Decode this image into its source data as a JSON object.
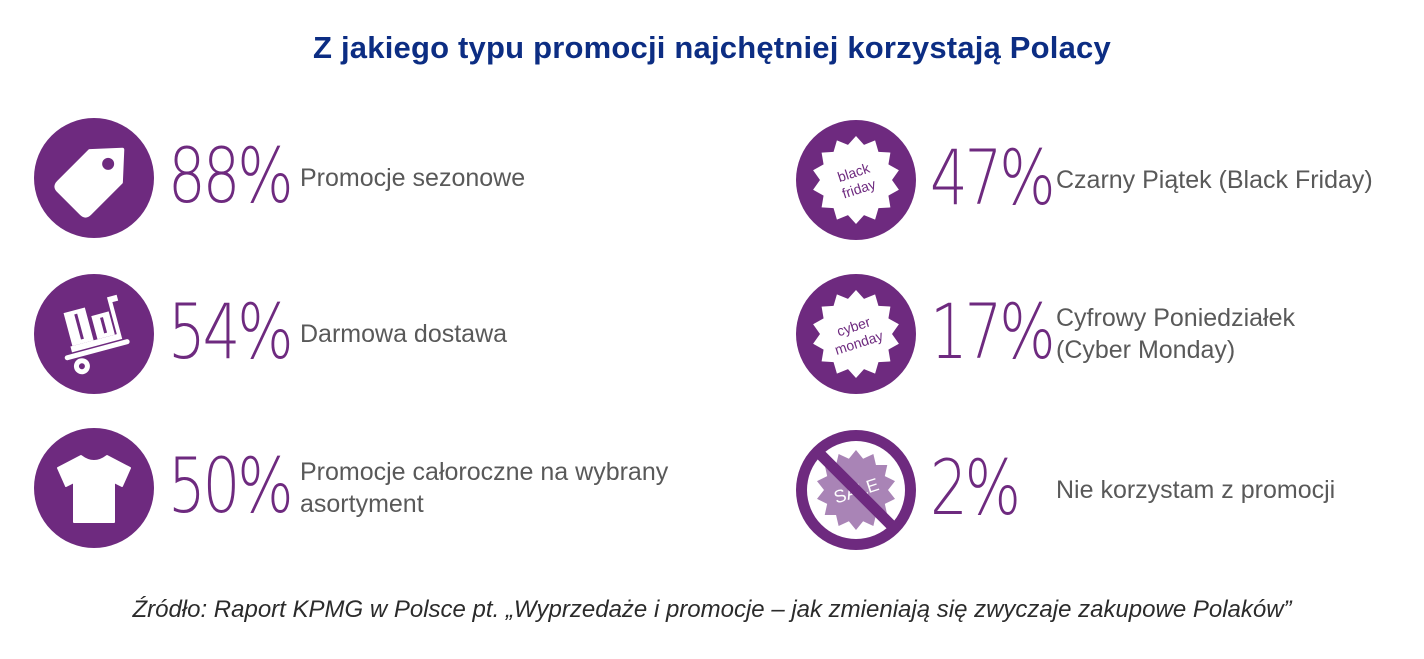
{
  "title": "Z jakiego typu promocji najchętniej korzystają Polacy",
  "source": "Źródło: Raport KPMG w Polsce pt. „Wyprzedaże i promocje – jak zmieniają się zwyczaje zakupowe Polaków”",
  "colors": {
    "accent": "#6e2a7f",
    "title": "#0c2d83",
    "label": "#595959",
    "icon_fill": "#ffffff",
    "faded_badge": "#a984b6"
  },
  "icons": {
    "badge_black": [
      "black",
      "friday"
    ],
    "badge_cyber": [
      "cyber",
      "monday"
    ],
    "badge_sale": "SALE"
  },
  "chart_data": {
    "type": "table",
    "title": "Z jakiego typu promocji najchętniej korzystają Polacy",
    "unit": "%",
    "items": [
      {
        "value": 88,
        "display": "88%",
        "label_lines": [
          "Promocje sezonowe"
        ],
        "icon": "price-tag-icon"
      },
      {
        "value": 54,
        "display": "54%",
        "label_lines": [
          "Darmowa dostawa"
        ],
        "icon": "hand-truck-icon"
      },
      {
        "value": 50,
        "display": "50%",
        "label_lines": [
          "Promocje całoroczne na wybrany",
          "asortyment"
        ],
        "icon": "tshirt-icon"
      },
      {
        "value": 47,
        "display": "47%",
        "label_lines": [
          "Czarny Piątek (Black Friday)"
        ],
        "icon": "black-friday-badge-icon"
      },
      {
        "value": 17,
        "display": "17%",
        "label_lines": [
          "Cyfrowy Poniedziałek",
          "(Cyber Monday)"
        ],
        "icon": "cyber-monday-badge-icon"
      },
      {
        "value": 2,
        "display": "2%",
        "label_lines": [
          "Nie korzystam z promocji"
        ],
        "icon": "no-sale-icon"
      }
    ]
  }
}
